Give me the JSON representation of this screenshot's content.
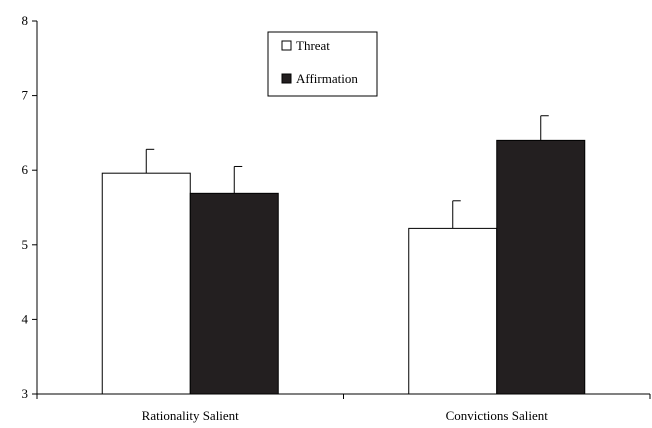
{
  "chart_data": {
    "type": "bar",
    "categories": [
      "Rationality Salient",
      "Convictions Salient"
    ],
    "series": [
      {
        "name": "Threat",
        "values": [
          5.96,
          5.22
        ],
        "error": [
          0.32,
          0.37
        ],
        "color": "#ffffff"
      },
      {
        "name": "Affirmation",
        "values": [
          5.69,
          6.4
        ],
        "error": [
          0.36,
          0.33
        ],
        "color": "#231f20"
      }
    ],
    "yticks": [
      "3",
      "4",
      "5",
      "6",
      "7",
      "8"
    ],
    "ylim": [
      3,
      8
    ],
    "grid": false,
    "legend_position": "top-center"
  }
}
